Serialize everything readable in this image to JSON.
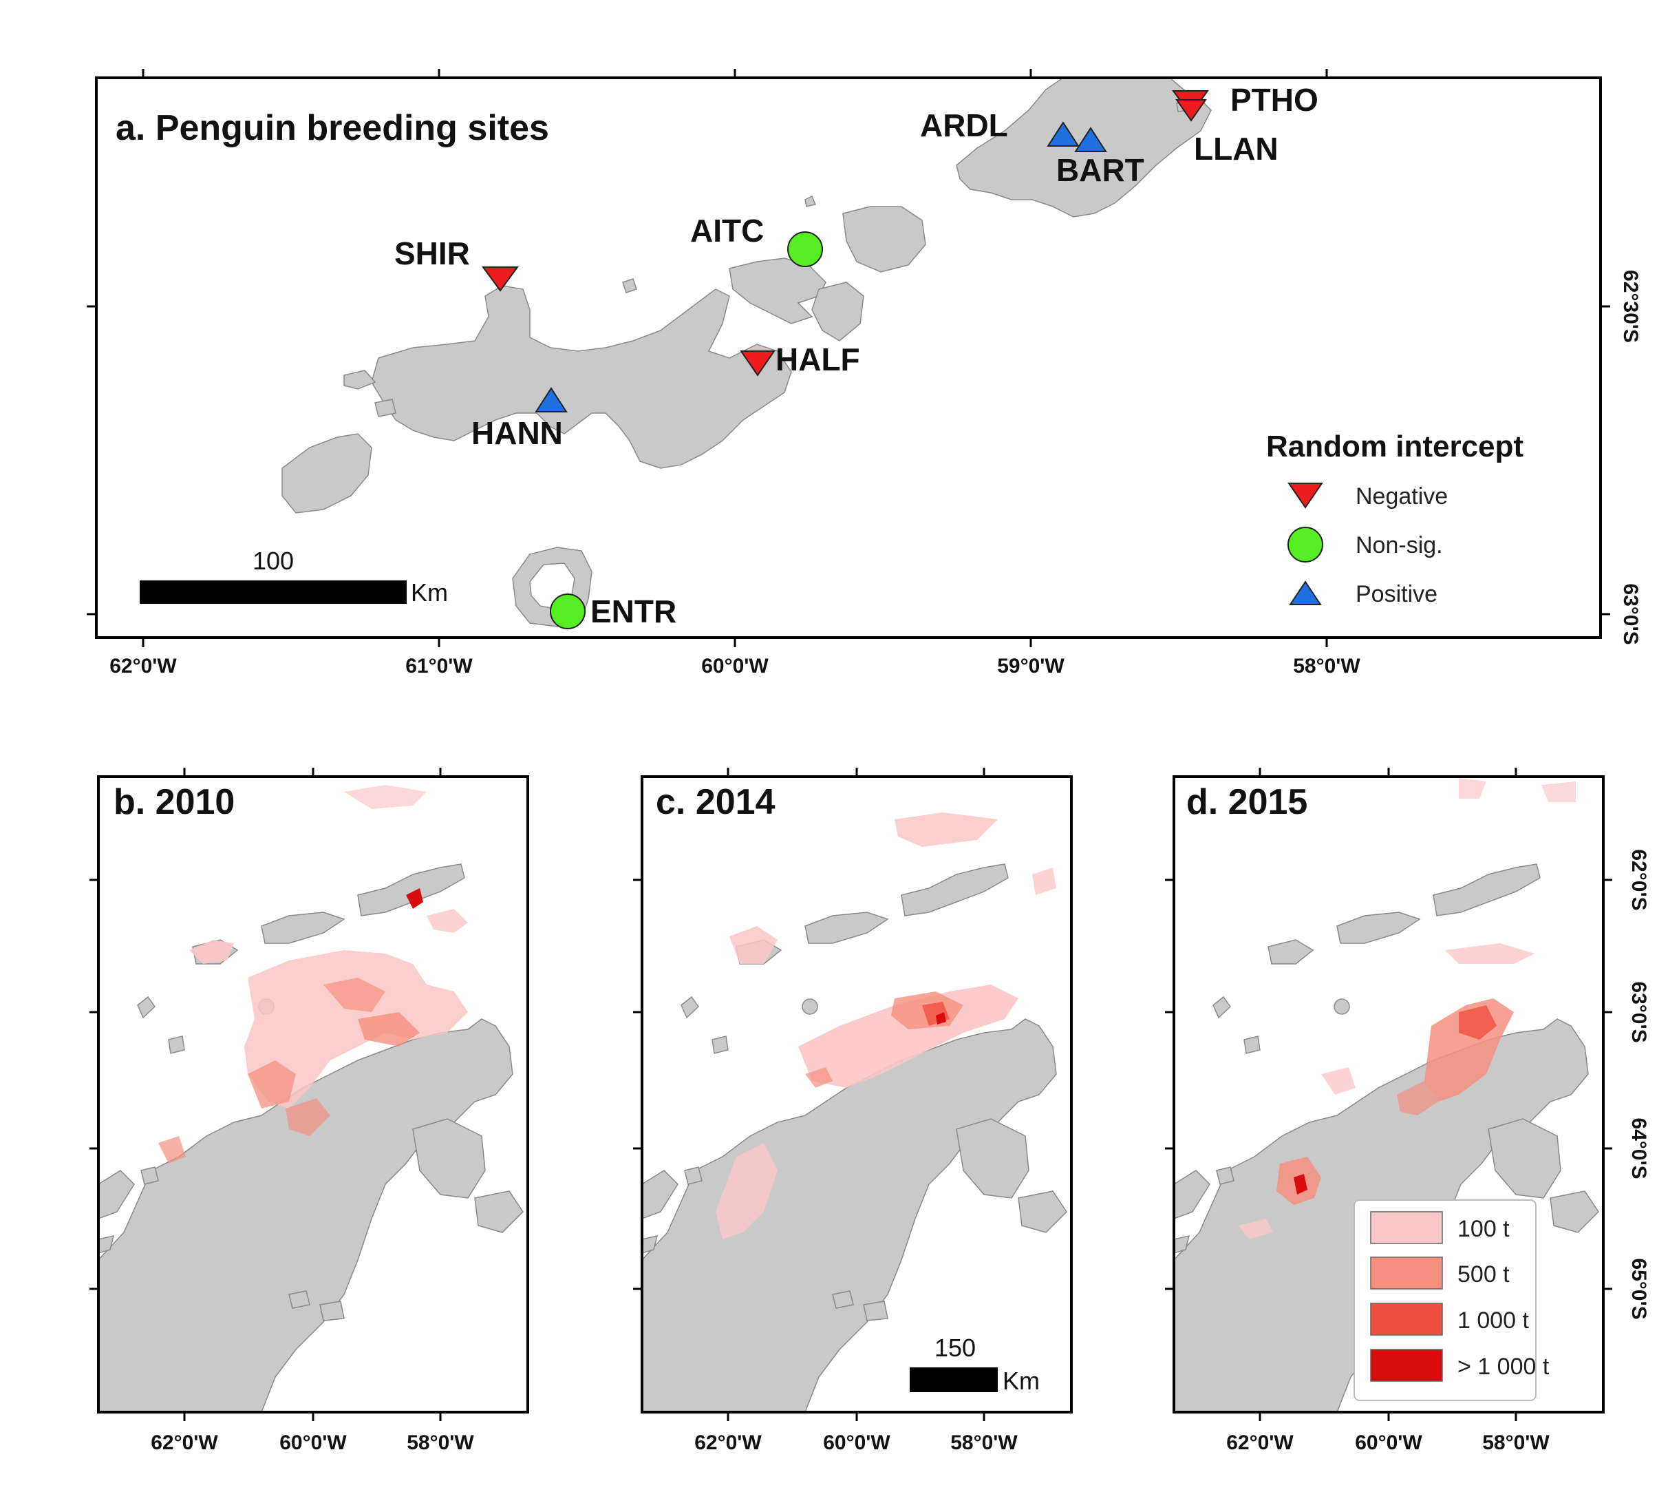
{
  "panel_a": {
    "title": "a. Penguin breeding sites",
    "x_ticks": [
      "62°0'W",
      "61°0'W",
      "60°0'W",
      "59°0'W",
      "58°0'W"
    ],
    "y_ticks": [
      "62°30'S",
      "63°0'S"
    ],
    "sites": [
      {
        "code": "SHIR",
        "category": "negative"
      },
      {
        "code": "HALF",
        "category": "negative"
      },
      {
        "code": "PTHO",
        "category": "negative"
      },
      {
        "code": "LLAN",
        "category": "negative"
      },
      {
        "code": "AITC",
        "category": "nonsig"
      },
      {
        "code": "ENTR",
        "category": "nonsig"
      },
      {
        "code": "ARDL",
        "category": "positive"
      },
      {
        "code": "BART",
        "category": "positive"
      },
      {
        "code": "HANN",
        "category": "positive"
      }
    ],
    "legend": {
      "title": "Random intercept",
      "items": [
        {
          "label": "Negative",
          "symbol": "down-triangle",
          "color": "#ee1c1c"
        },
        {
          "label": "Non-sig.",
          "symbol": "circle",
          "color": "#55ee22"
        },
        {
          "label": "Positive",
          "symbol": "up-triangle",
          "color": "#1f6fe0"
        }
      ]
    },
    "scalebar": {
      "value": "100",
      "unit": "Km"
    }
  },
  "panel_b": {
    "title": "b. 2010"
  },
  "panel_c": {
    "title": "c. 2014",
    "scalebar": {
      "value": "150",
      "unit": "Km"
    }
  },
  "panel_d": {
    "title": "d. 2015",
    "legend": [
      {
        "label": "100 t",
        "color": "#fcc7c7"
      },
      {
        "label": "500 t",
        "color": "#f59080"
      },
      {
        "label": "1 000 t",
        "color": "#ee5040"
      },
      {
        "label": "> 1 000 t",
        "color": "#d80c0c"
      }
    ]
  },
  "bottom_x_ticks": [
    "62°0'W",
    "60°0'W",
    "58°0'W"
  ],
  "bottom_y_ticks": [
    "62°0'S",
    "63°0'S",
    "64°0'S",
    "65°0'S"
  ]
}
